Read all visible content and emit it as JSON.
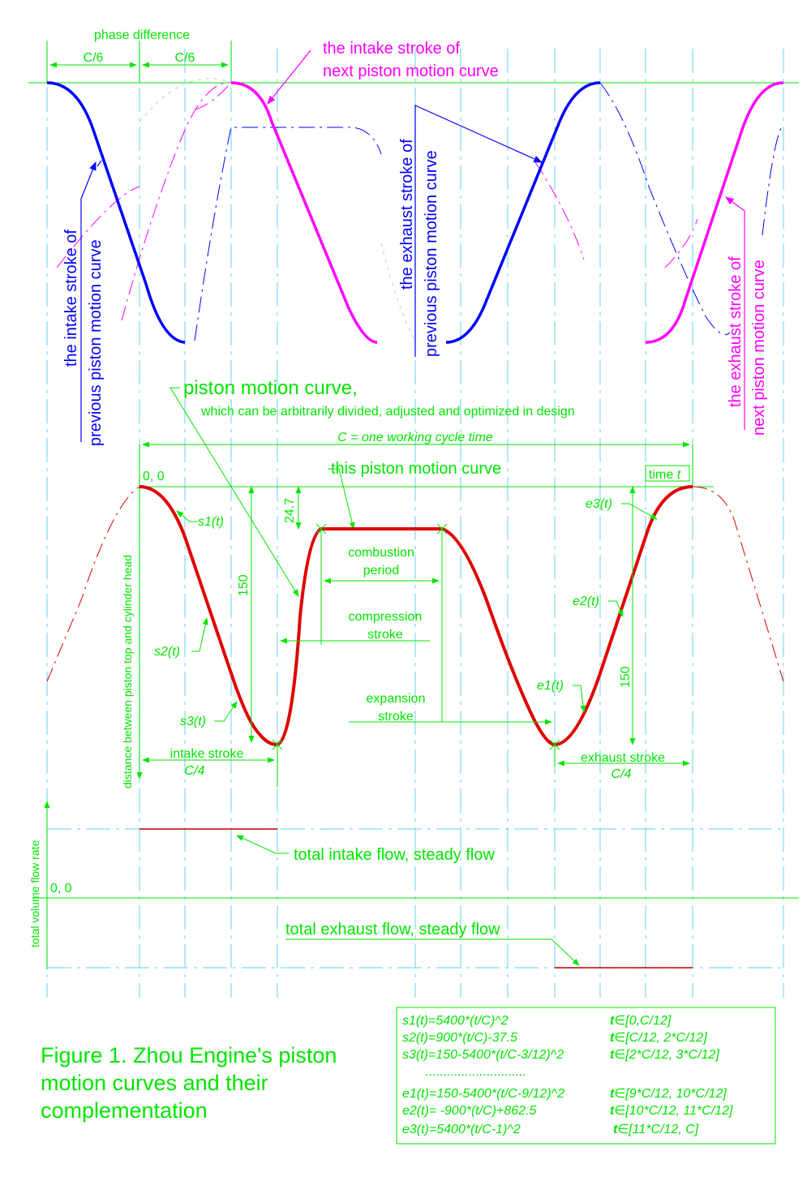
{
  "figure": {
    "caption_lines": [
      "Figure 1. Zhou Engine's piston",
      "motion curves and their",
      "complementation"
    ]
  },
  "top_panel": {
    "phase_difference": "phase difference",
    "c6_left": "C/6",
    "c6_right": "C/6",
    "next_intake_line1": "the intake stroke of",
    "next_intake_line2": "next piston motion curve",
    "prev_intake_line1": "the intake stroke of",
    "prev_intake_line2": "previous piston motion curve",
    "prev_exhaust_line1": "the exhaust stroke of",
    "prev_exhaust_line2": "previous piston motion curve",
    "next_exhaust_line1": "the exhaust stroke of",
    "next_exhaust_line2": "next piston motion curve"
  },
  "main_panel": {
    "title_line1": "piston motion curve,",
    "title_line2": "which can be arbitrarily divided, adjusted and optimized in design",
    "cycle_label": "C = one working cycle time",
    "origin": "0, 0",
    "this_curve": "this piston motion curve",
    "time_label": "time",
    "time_var": "t",
    "y_axis_label": "distance between piston top and cylinder head",
    "dim_24_7": "24.7",
    "dim_150_left": "150",
    "dim_150_right": "150",
    "s1": "s1(t)",
    "s2": "s2(t)",
    "s3": "s3(t)",
    "e1": "e1(t)",
    "e2": "e2(t)",
    "e3": "e3(t)",
    "combustion_line1": "combustion",
    "combustion_line2": "period",
    "compression_line1": "compression",
    "compression_line2": "stroke",
    "expansion_line1": "expansion",
    "expansion_line2": "stroke",
    "intake_stroke": "intake stroke",
    "intake_c4": "C/4",
    "exhaust_stroke": "exhaust stroke",
    "exhaust_c4": "C/4"
  },
  "flow_panel": {
    "y_axis_label": "total volume flow rate",
    "origin": "0, 0",
    "intake_flow": "total intake flow, steady flow",
    "exhaust_flow": "total exhaust flow, steady flow"
  },
  "formulas": {
    "dots": "............................",
    "rows": [
      {
        "fn": "s1(t)=5400*(t/C)^2",
        "domain": "[0,C/12]"
      },
      {
        "fn": "s2(t)=900*(t/C)-37.5",
        "domain": "[C/12, 2*C/12]"
      },
      {
        "fn": "s3(t)=150-5400*(t/C-3/12)^2",
        "domain": "[2*C/12, 3*C/12]"
      },
      {
        "fn": "e1(t)=150-5400*(t/C-9/12)^2",
        "domain": "[9*C/12, 10*C/12]"
      },
      {
        "fn": "e2(t)= -900*(t/C)+862.5",
        "domain": "[10*C/12, 11*C/12]"
      },
      {
        "fn": "e3(t)=5400*(t/C-1)^2",
        "domain": "[11*C/12, C]"
      }
    ],
    "t_symbol": "t",
    "in_symbol": "∈"
  },
  "colors": {
    "green": "#00e600",
    "magenta": "#ff00ff",
    "blue": "#0000ff",
    "red": "#e00000",
    "cyan": "#7fdcf0"
  }
}
